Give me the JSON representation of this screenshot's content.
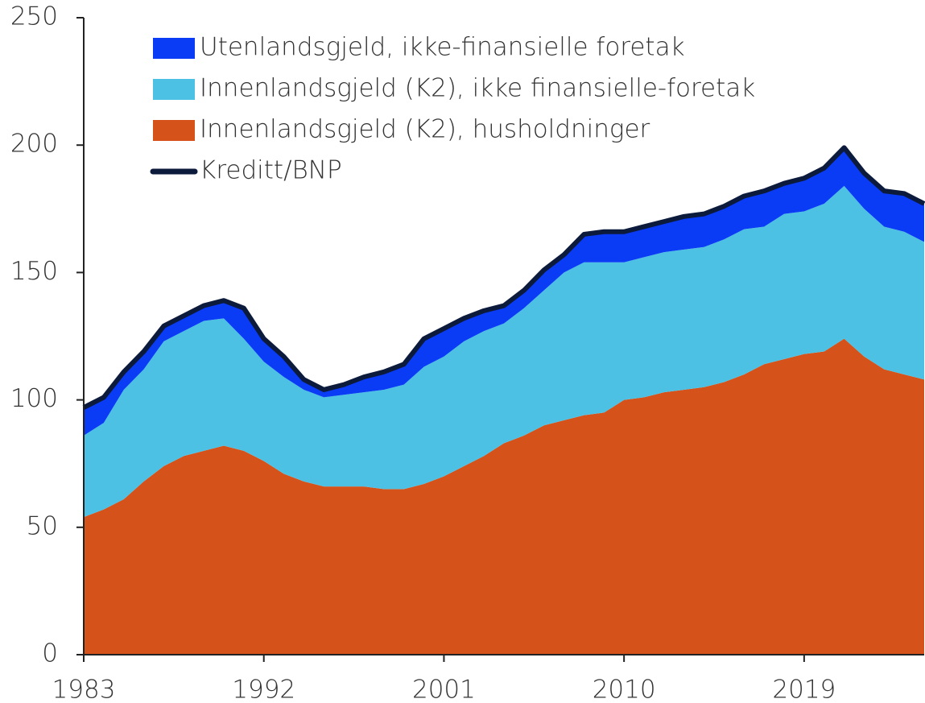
{
  "chart_data": {
    "type": "area",
    "x": [
      1983,
      1984,
      1985,
      1986,
      1987,
      1988,
      1989,
      1990,
      1991,
      1992,
      1993,
      1994,
      1995,
      1996,
      1997,
      1998,
      1999,
      2000,
      2001,
      2002,
      2003,
      2004,
      2005,
      2006,
      2007,
      2008,
      2009,
      2010,
      2011,
      2012,
      2013,
      2014,
      2015,
      2016,
      2017,
      2018,
      2019,
      2020,
      2021,
      2022,
      2023,
      2024,
      2025
    ],
    "series": [
      {
        "name": "Utenlandsgjeld, ikke-finansielle foretak",
        "color": "#0a3cf5",
        "kind": "area",
        "values": [
          11,
          10,
          7,
          7,
          6,
          6,
          6,
          7,
          12,
          9,
          8,
          4,
          3,
          4,
          6,
          7,
          8,
          11,
          11,
          9,
          8,
          7,
          7,
          8,
          7,
          11,
          12,
          12,
          12,
          12,
          13,
          13,
          13,
          13,
          14,
          12,
          13,
          14,
          15,
          14,
          14,
          15,
          15
        ]
      },
      {
        "name": "Innenlandsgjeld (K2), ikke finansielle-foretak",
        "color": "#4cc1e3",
        "kind": "area",
        "values": [
          32,
          34,
          43,
          44,
          49,
          49,
          51,
          50,
          44,
          39,
          38,
          36,
          35,
          36,
          37,
          39,
          41,
          46,
          47,
          49,
          49,
          47,
          50,
          53,
          58,
          60,
          59,
          54,
          55,
          55,
          55,
          55,
          56,
          57,
          54,
          57,
          56,
          58,
          60,
          58,
          56,
          56,
          54
        ]
      },
      {
        "name": "Innenlandsgjeld (K2), husholdninger",
        "color": "#d5531a",
        "kind": "area",
        "values": [
          54,
          57,
          61,
          68,
          74,
          78,
          80,
          82,
          80,
          76,
          71,
          68,
          66,
          66,
          66,
          65,
          65,
          67,
          70,
          74,
          78,
          83,
          86,
          90,
          92,
          94,
          95,
          100,
          101,
          103,
          104,
          105,
          107,
          110,
          114,
          116,
          118,
          119,
          124,
          117,
          112,
          110,
          108
        ]
      },
      {
        "name": "Kreditt/BNP",
        "color": "#0c1a3c",
        "kind": "line",
        "values": [
          97,
          101,
          111,
          119,
          129,
          133,
          137,
          139,
          136,
          124,
          117,
          108,
          104,
          106,
          109,
          111,
          114,
          124,
          128,
          132,
          135,
          137,
          143,
          151,
          157,
          165,
          166,
          166,
          168,
          170,
          172,
          173,
          176,
          180,
          182,
          185,
          187,
          191,
          199,
          189,
          182,
          181,
          177
        ]
      }
    ],
    "xlim": [
      1983,
      2025
    ],
    "xticks": [
      1983,
      1992,
      2001,
      2010,
      2019
    ],
    "ylim": [
      0,
      250
    ],
    "yticks": [
      0,
      50,
      100,
      150,
      200,
      250
    ]
  }
}
